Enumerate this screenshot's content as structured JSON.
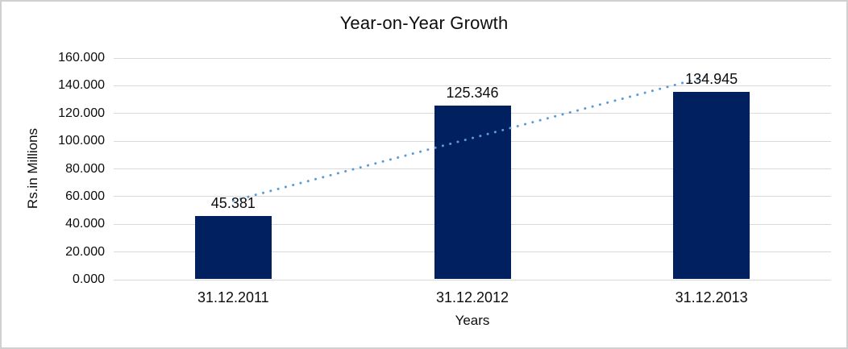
{
  "chart_data": {
    "type": "bar",
    "title": "Year-on-Year Growth",
    "xlabel": "Years",
    "ylabel": "Rs.in Millions",
    "categories": [
      "31.12.2011",
      "31.12.2012",
      "31.12.2013"
    ],
    "values": [
      45.381,
      125.346,
      134.945
    ],
    "value_labels": [
      "45.381",
      "125.346",
      "134.945"
    ],
    "ytick_labels": [
      "160.000",
      "140.000",
      "120.000",
      "100.000",
      "80.000",
      "60.000",
      "40.000",
      "20.000",
      "0.000"
    ],
    "ylim": [
      0,
      160
    ],
    "grid": true,
    "legend": "none",
    "colors": {
      "bar": "#002060",
      "trendline": "#5b9bd5",
      "gridline": "#d9d9d9",
      "text": "#0d0d0d",
      "frame_border": "#d0d0d0"
    },
    "trendline": {
      "type": "linear-dotted",
      "start_value": 57.0,
      "end_value": 147.5
    }
  }
}
